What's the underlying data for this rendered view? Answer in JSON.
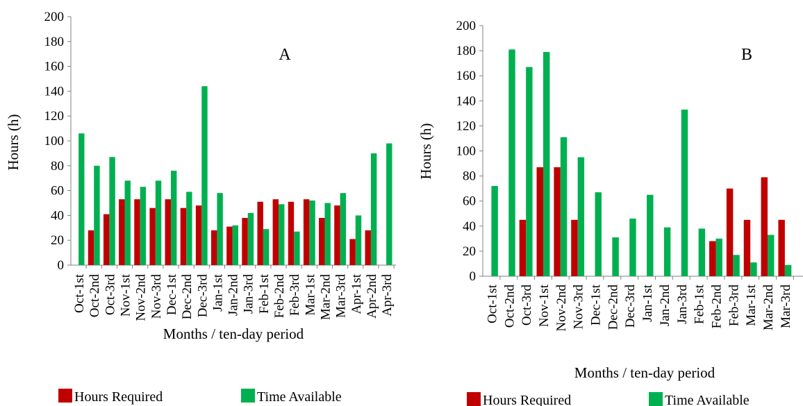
{
  "colors": {
    "required": "#C00000",
    "available": "#00B050",
    "axis": "#808080"
  },
  "chart_data": [
    {
      "type": "bar",
      "panel_label": "A",
      "xlabel": "Months / ten-day period",
      "ylabel": "Hours (h)",
      "ylim": [
        0,
        200
      ],
      "yticks": [
        "0",
        "20",
        "40",
        "60",
        "80",
        "100",
        "120",
        "140",
        "160",
        "180",
        "200"
      ],
      "categories": [
        "Oct-1st",
        "Oct-2nd",
        "Oct-3rd",
        "Nov-1st",
        "Nov-2nd",
        "Nov-3rd",
        "Dec-1st",
        "Dec-2nd",
        "Dec-3rd",
        "Jan-1st",
        "Jan-2nd",
        "Jan-3rd",
        "Feb-1st",
        "Feb-2nd",
        "Feb-3rd",
        "Mar-1st",
        "Mar-2nd",
        "Mar-3rd",
        "Apr-1st",
        "Apr-2nd",
        "Apr-3rd"
      ],
      "series": [
        {
          "name": "Hours Required",
          "values": [
            0,
            28,
            41,
            53,
            53,
            46,
            53,
            46,
            48,
            28,
            31,
            38,
            51,
            53,
            51,
            53,
            38,
            48,
            21,
            28,
            0
          ]
        },
        {
          "name": "Time Available",
          "values": [
            106,
            80,
            87,
            68,
            63,
            68,
            76,
            59,
            144,
            58,
            32,
            42,
            29,
            49,
            27,
            52,
            50,
            58,
            40,
            90,
            98
          ]
        }
      ],
      "legend": "bottom"
    },
    {
      "type": "bar",
      "panel_label": "B",
      "xlabel": "Months / ten-day period",
      "ylabel": "Hours (h)",
      "ylim": [
        0,
        200
      ],
      "yticks": [
        "0",
        "20",
        "40",
        "60",
        "80",
        "100",
        "120",
        "140",
        "160",
        "180",
        "200"
      ],
      "categories": [
        "Oct-1st",
        "Oct-2nd",
        "Oct-3rd",
        "Nov-1st",
        "Nov-2nd",
        "Nov-3rd",
        "Dec-1st",
        "Dec-2nd",
        "Dec-3rd",
        "Jan-1st",
        "Jan-2nd",
        "Jan-3rd",
        "Feb-1st",
        "Feb-2nd",
        "Feb-3rd",
        "Mar-1st",
        "Mar-2nd",
        "Mar-3rd"
      ],
      "series": [
        {
          "name": "Hours Required",
          "values": [
            0,
            0,
            45,
            87,
            87,
            45,
            0,
            0,
            0,
            0,
            0,
            0,
            0,
            28,
            70,
            45,
            79,
            45
          ]
        },
        {
          "name": "Time Available",
          "values": [
            72,
            181,
            167,
            179,
            111,
            95,
            67,
            31,
            46,
            65,
            39,
            133,
            38,
            30,
            17,
            11,
            33,
            9
          ]
        }
      ],
      "legend": "bottom"
    }
  ]
}
